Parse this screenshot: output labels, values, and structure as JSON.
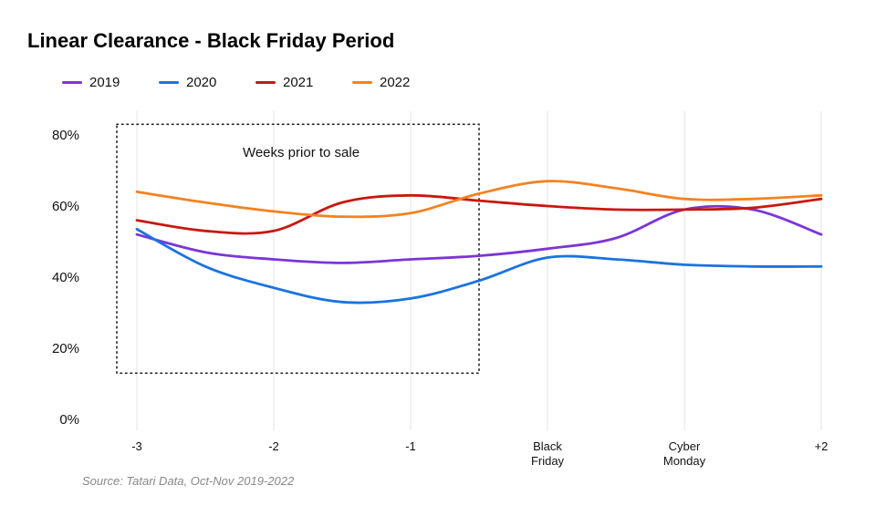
{
  "chart_data": {
    "type": "line",
    "title": "Linear Clearance - Black Friday Period",
    "categories": [
      "-3",
      "-2",
      "-1",
      "Black\nFriday",
      "Cyber\nMonday",
      "+2"
    ],
    "ylim": [
      0,
      80
    ],
    "yticks": [
      "0%",
      "20%",
      "40%",
      "60%",
      "80%"
    ],
    "grid": "vertical",
    "legend_position": "top-left",
    "annotation": {
      "text": "Weeks prior to sale",
      "x_range": [
        -3,
        -0.5
      ],
      "y_range": [
        13,
        83
      ]
    },
    "series": [
      {
        "name": "2019",
        "color": "#7B35D8",
        "x": [
          0,
          0.5,
          1,
          1.5,
          2,
          2.5,
          3,
          3.5,
          4,
          4.5,
          5
        ],
        "values": [
          52,
          47,
          45,
          44,
          45,
          46,
          48,
          51,
          59,
          59,
          52
        ]
      },
      {
        "name": "2020",
        "color": "#1A73E0",
        "x": [
          0,
          0.5,
          1,
          1.5,
          2,
          2.5,
          3,
          3.5,
          4,
          4.5,
          5
        ],
        "values": [
          53.5,
          43,
          37,
          33,
          34,
          39,
          45.5,
          45,
          43.5,
          43,
          43
        ]
      },
      {
        "name": "2021",
        "color": "#C8180E",
        "x": [
          0,
          0.5,
          1,
          1.5,
          2,
          2.5,
          3,
          3.5,
          4,
          4.5,
          5
        ],
        "values": [
          56,
          53,
          53,
          61,
          63,
          61.5,
          60,
          59,
          59,
          59.5,
          62
        ]
      },
      {
        "name": "2022",
        "color": "#F5821F",
        "x": [
          0,
          0.5,
          1,
          1.5,
          2,
          2.5,
          3,
          3.5,
          4,
          4.5,
          5
        ],
        "values": [
          64,
          61,
          58.5,
          57,
          58,
          63.5,
          67,
          65,
          62,
          62,
          63
        ]
      }
    ]
  },
  "source": "Source: Tatari Data, Oct-Nov 2019-2022"
}
